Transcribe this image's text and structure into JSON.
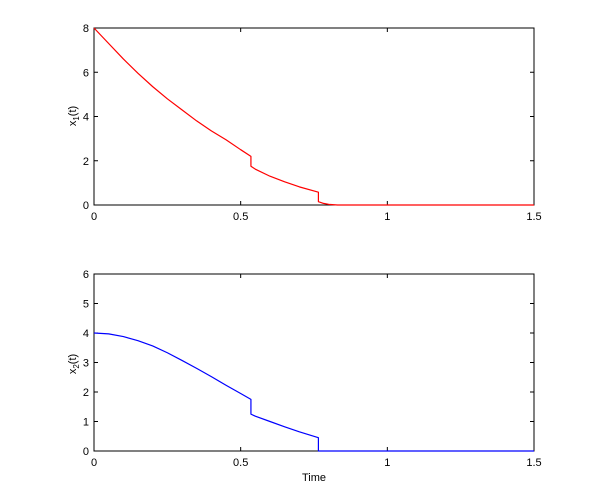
{
  "chart_data": [
    {
      "type": "line",
      "title": "",
      "xlabel": "",
      "ylabel_main": "x",
      "ylabel_sub": "1",
      "ylabel_tail": "(t)",
      "xlim": [
        0,
        1.5
      ],
      "ylim": [
        0,
        8
      ],
      "xticks": [
        0,
        0.5,
        1,
        1.5
      ],
      "xtick_labels": [
        "0",
        "0.5",
        "1",
        "1.5"
      ],
      "yticks": [
        0,
        2,
        4,
        6,
        8
      ],
      "ytick_labels": [
        "0",
        "2",
        "4",
        "6",
        "8"
      ],
      "grid": false,
      "series": [
        {
          "color": "#ff0000",
          "x": [
            0,
            0.05,
            0.1,
            0.15,
            0.2,
            0.25,
            0.3,
            0.35,
            0.4,
            0.45,
            0.5,
            0.535,
            0.535,
            0.55,
            0.6,
            0.65,
            0.7,
            0.765,
            0.765,
            0.78,
            0.8,
            0.83,
            1.0,
            1.5
          ],
          "y": [
            8.0,
            7.3,
            6.6,
            5.95,
            5.35,
            4.8,
            4.3,
            3.8,
            3.35,
            2.95,
            2.5,
            2.2,
            1.75,
            1.62,
            1.3,
            1.05,
            0.82,
            0.58,
            0.15,
            0.08,
            0.03,
            0.0,
            0.0,
            0.0
          ]
        }
      ]
    },
    {
      "type": "line",
      "title": "",
      "xlabel": "Time",
      "ylabel_main": "x",
      "ylabel_sub": "2",
      "ylabel_tail": "(t)",
      "xlim": [
        0,
        1.5
      ],
      "ylim": [
        0,
        6
      ],
      "xticks": [
        0,
        0.5,
        1,
        1.5
      ],
      "xtick_labels": [
        "0",
        "0.5",
        "1",
        "1.5"
      ],
      "yticks": [
        0,
        1,
        2,
        3,
        4,
        5,
        6
      ],
      "ytick_labels": [
        "0",
        "1",
        "2",
        "3",
        "4",
        "5",
        "6"
      ],
      "grid": false,
      "series": [
        {
          "color": "#0000ff",
          "x": [
            0,
            0.05,
            0.1,
            0.15,
            0.2,
            0.25,
            0.3,
            0.35,
            0.4,
            0.45,
            0.5,
            0.535,
            0.535,
            0.55,
            0.6,
            0.65,
            0.7,
            0.765,
            0.765,
            1.0,
            1.5
          ],
          "y": [
            4.0,
            3.97,
            3.88,
            3.74,
            3.56,
            3.33,
            3.07,
            2.8,
            2.52,
            2.23,
            1.95,
            1.75,
            1.25,
            1.18,
            1.0,
            0.82,
            0.65,
            0.45,
            0.0,
            0.0,
            0.0
          ]
        }
      ]
    }
  ]
}
